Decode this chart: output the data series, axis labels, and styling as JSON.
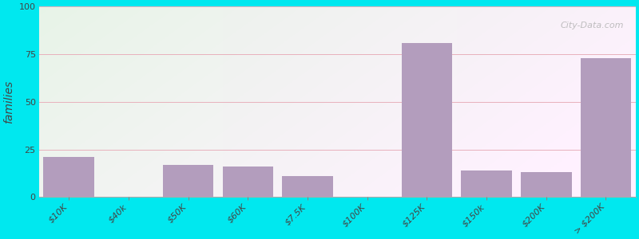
{
  "ylabel": "families",
  "categories": [
    "$10K",
    "$40k",
    "$50K",
    "$60K",
    "$7.5K",
    "$100K",
    "$125K",
    "$150k",
    "$200K",
    "> $200K"
  ],
  "values": [
    21,
    0,
    17,
    16,
    11,
    0,
    81,
    14,
    13,
    73
  ],
  "bar_color": "#b39dbd",
  "bg_color": "#00e8ef",
  "grid_color": "#e8b0bc",
  "title_fontsize": 15,
  "subtitle_fontsize": 11,
  "subtitle_color": "#7a6060",
  "ylabel_fontsize": 10,
  "tick_fontsize": 8,
  "ylim": [
    0,
    100
  ],
  "yticks": [
    0,
    25,
    50,
    75,
    100
  ],
  "watermark": "City-Data.com"
}
